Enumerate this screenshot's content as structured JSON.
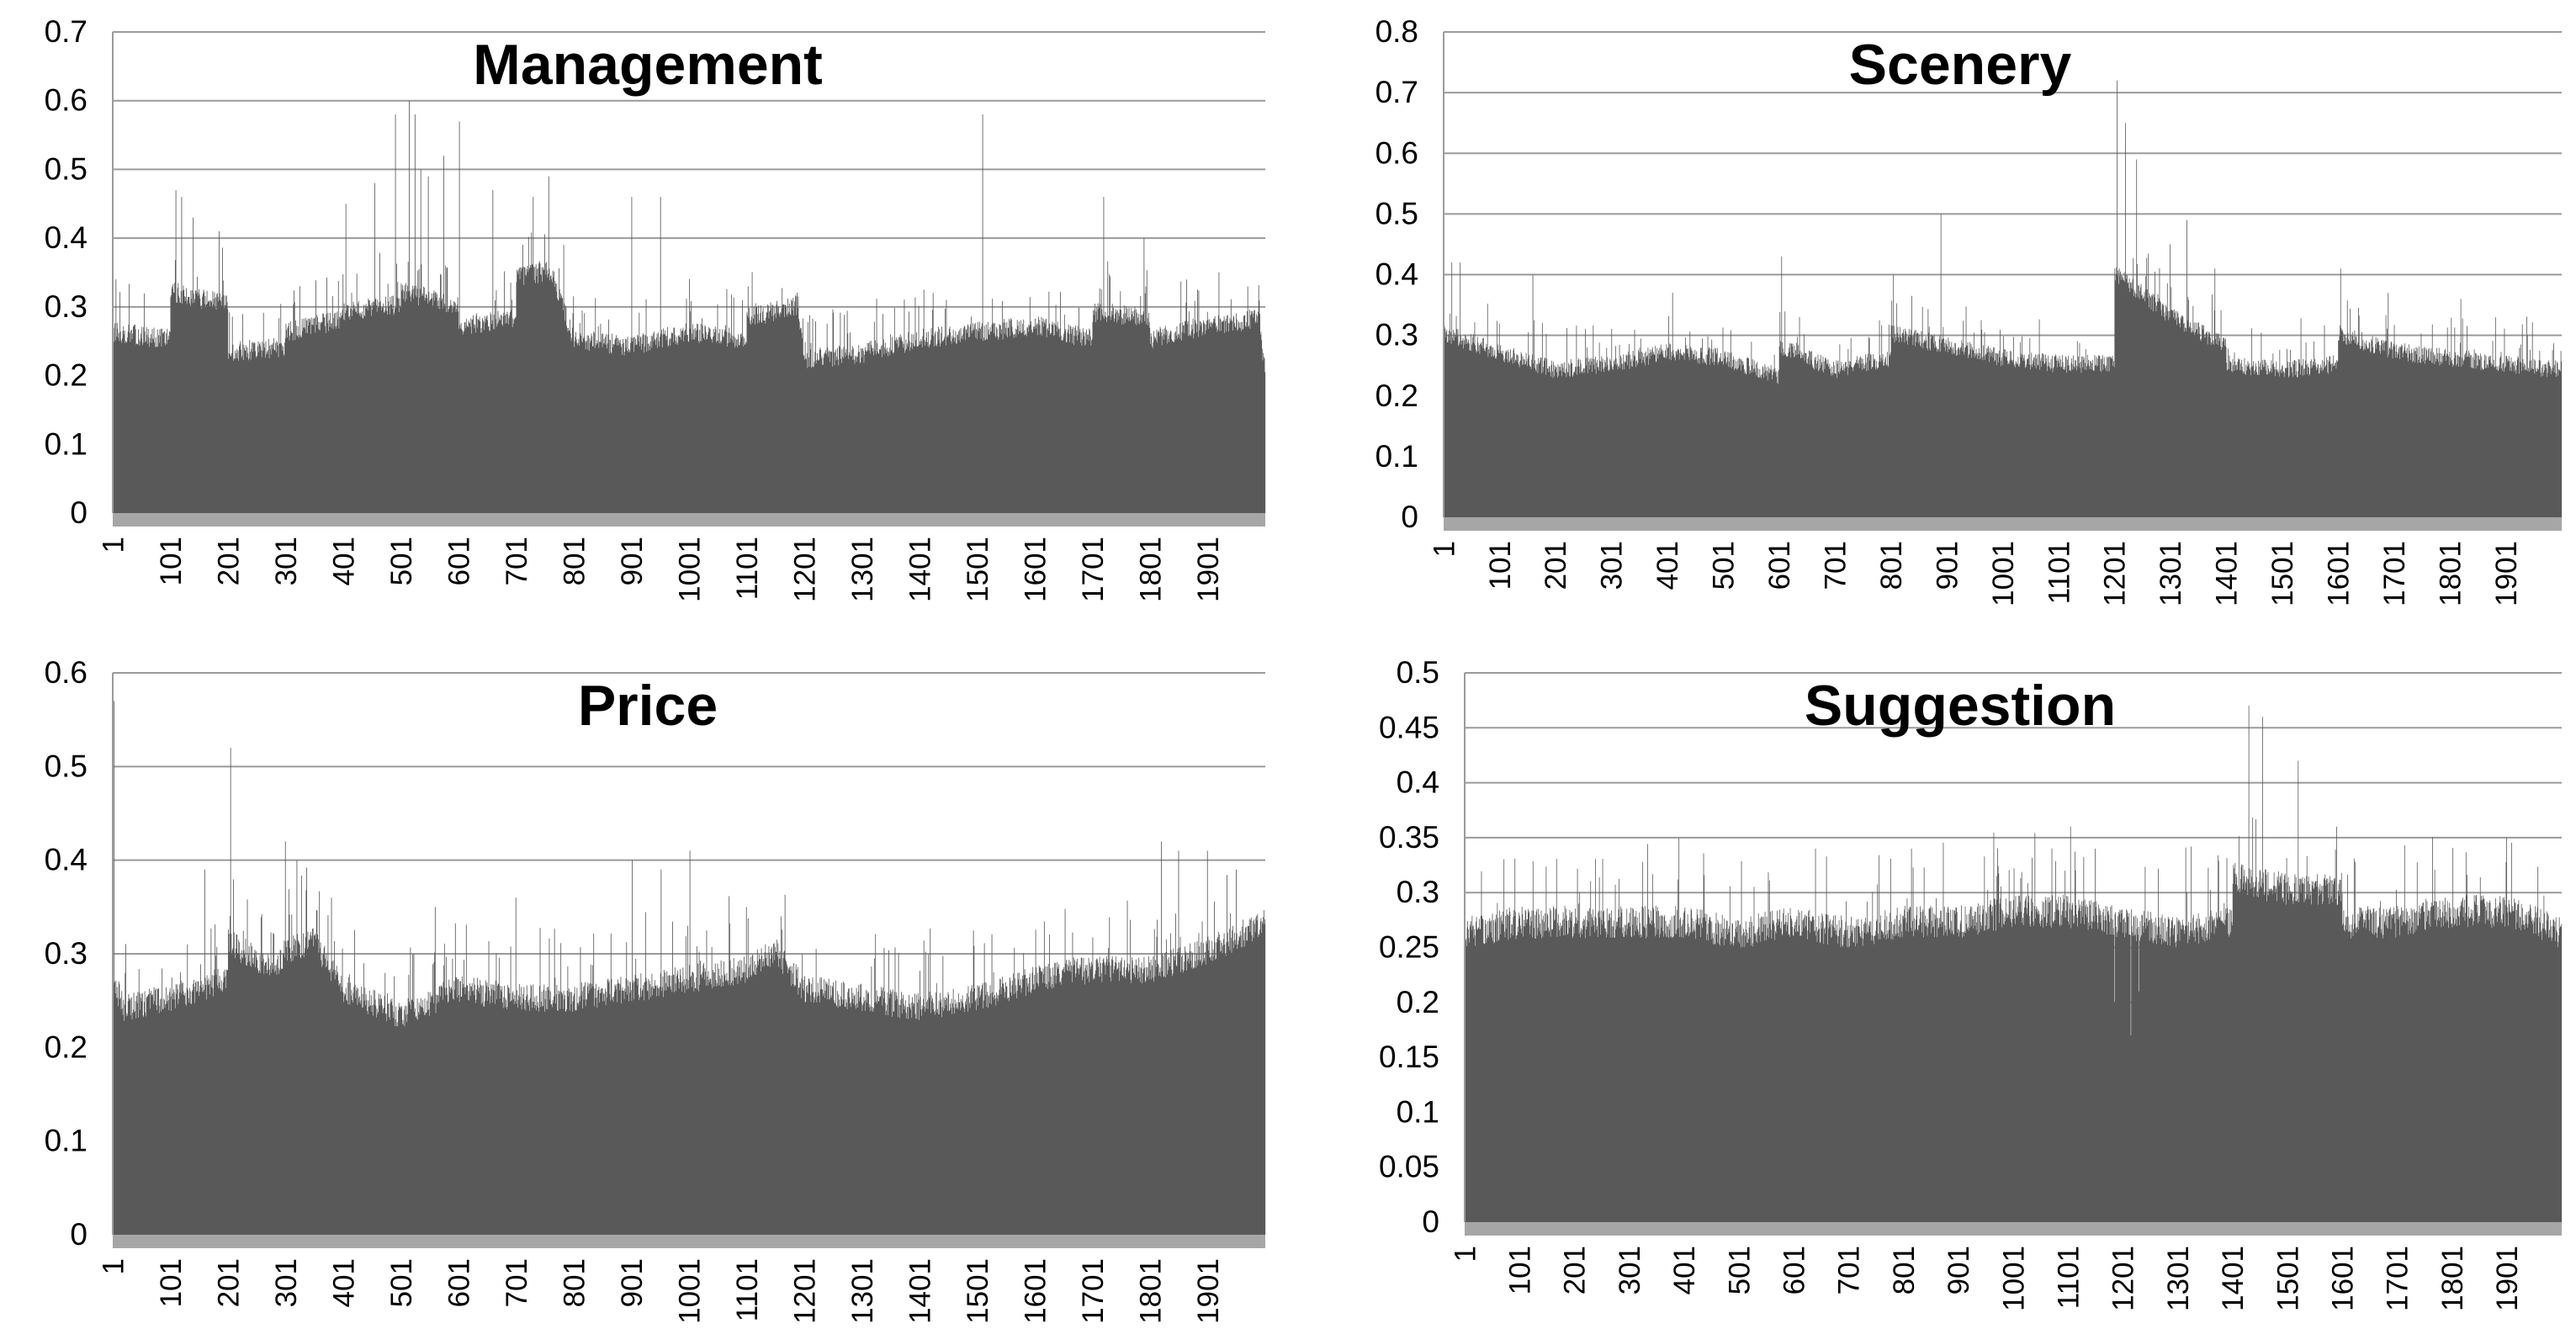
{
  "chart_data": [
    {
      "type": "bar",
      "title": "Management",
      "xlabel": "",
      "ylabel": "",
      "ylim": [
        0,
        0.7
      ],
      "yticks": [
        "0",
        "0.1",
        "0.2",
        "0.3",
        "0.4",
        "0.5",
        "0.6",
        "0.7"
      ],
      "xtick_labels": [
        "1",
        "101",
        "201",
        "301",
        "401",
        "501",
        "601",
        "701",
        "801",
        "901",
        "1001",
        "1101",
        "1201",
        "1301",
        "1401",
        "1501",
        "1601",
        "1701",
        "1801",
        "1901"
      ],
      "x_range": [
        1,
        2000
      ],
      "grid": true,
      "bar_color": "#595959",
      "baseline": [
        [
          1,
          0.26
        ],
        [
          100,
          0.25
        ],
        [
          101,
          0.32
        ],
        [
          200,
          0.3
        ],
        [
          201,
          0.23
        ],
        [
          300,
          0.24
        ],
        [
          301,
          0.26
        ],
        [
          400,
          0.28
        ],
        [
          401,
          0.29
        ],
        [
          500,
          0.3
        ],
        [
          501,
          0.32
        ],
        [
          600,
          0.3
        ],
        [
          601,
          0.27
        ],
        [
          700,
          0.28
        ],
        [
          701,
          0.34
        ],
        [
          760,
          0.35
        ],
        [
          800,
          0.25
        ],
        [
          901,
          0.24
        ],
        [
          1000,
          0.26
        ],
        [
          1100,
          0.25
        ],
        [
          1101,
          0.28
        ],
        [
          1190,
          0.3
        ],
        [
          1200,
          0.22
        ],
        [
          1300,
          0.23
        ],
        [
          1400,
          0.25
        ],
        [
          1500,
          0.26
        ],
        [
          1600,
          0.27
        ],
        [
          1700,
          0.25
        ],
        [
          1701,
          0.29
        ],
        [
          1800,
          0.28
        ],
        [
          1801,
          0.25
        ],
        [
          1900,
          0.27
        ],
        [
          1990,
          0.28
        ],
        [
          2000,
          0.2
        ]
      ],
      "peaks": [
        [
          6,
          0.34
        ],
        [
          110,
          0.47
        ],
        [
          120,
          0.46
        ],
        [
          140,
          0.43
        ],
        [
          185,
          0.41
        ],
        [
          405,
          0.45
        ],
        [
          455,
          0.48
        ],
        [
          491,
          0.58
        ],
        [
          515,
          0.6
        ],
        [
          525,
          0.58
        ],
        [
          535,
          0.5
        ],
        [
          548,
          0.49
        ],
        [
          575,
          0.52
        ],
        [
          602,
          0.57
        ],
        [
          660,
          0.47
        ],
        [
          730,
          0.46
        ],
        [
          757,
          0.49
        ],
        [
          783,
          0.39
        ],
        [
          901,
          0.46
        ],
        [
          951,
          0.46
        ],
        [
          1510,
          0.58
        ],
        [
          1720,
          0.46
        ],
        [
          1790,
          0.4
        ],
        [
          1920,
          0.35
        ]
      ]
    },
    {
      "type": "bar",
      "title": "Scenery",
      "xlabel": "",
      "ylabel": "",
      "ylim": [
        0,
        0.8
      ],
      "yticks": [
        "0",
        "0.1",
        "0.2",
        "0.3",
        "0.4",
        "0.5",
        "0.6",
        "0.7",
        "0.8"
      ],
      "xtick_labels": [
        "1",
        "101",
        "201",
        "301",
        "401",
        "501",
        "601",
        "701",
        "801",
        "901",
        "1001",
        "1101",
        "1201",
        "1301",
        "1401",
        "1501",
        "1601",
        "1701",
        "1801",
        "1901"
      ],
      "x_range": [
        1,
        2000
      ],
      "grid": true,
      "bar_color": "#595959",
      "baseline": [
        [
          1,
          0.3
        ],
        [
          100,
          0.27
        ],
        [
          200,
          0.24
        ],
        [
          300,
          0.25
        ],
        [
          400,
          0.27
        ],
        [
          500,
          0.26
        ],
        [
          600,
          0.23
        ],
        [
          601,
          0.28
        ],
        [
          700,
          0.24
        ],
        [
          800,
          0.26
        ],
        [
          801,
          0.3
        ],
        [
          900,
          0.28
        ],
        [
          1000,
          0.26
        ],
        [
          1100,
          0.25
        ],
        [
          1200,
          0.25
        ],
        [
          1201,
          0.4
        ],
        [
          1300,
          0.33
        ],
        [
          1400,
          0.28
        ],
        [
          1401,
          0.25
        ],
        [
          1500,
          0.24
        ],
        [
          1600,
          0.25
        ],
        [
          1601,
          0.3
        ],
        [
          1700,
          0.27
        ],
        [
          1800,
          0.26
        ],
        [
          1900,
          0.25
        ],
        [
          2000,
          0.24
        ]
      ],
      "peaks": [
        [
          15,
          0.42
        ],
        [
          30,
          0.42
        ],
        [
          160,
          0.4
        ],
        [
          410,
          0.37
        ],
        [
          605,
          0.43
        ],
        [
          805,
          0.4
        ],
        [
          890,
          0.5
        ],
        [
          1205,
          0.72
        ],
        [
          1220,
          0.65
        ],
        [
          1240,
          0.59
        ],
        [
          1300,
          0.45
        ],
        [
          1330,
          0.49
        ],
        [
          1380,
          0.41
        ],
        [
          1605,
          0.41
        ],
        [
          1690,
          0.37
        ],
        [
          1820,
          0.36
        ]
      ]
    },
    {
      "type": "bar",
      "title": "Price",
      "xlabel": "",
      "ylabel": "",
      "ylim": [
        0,
        0.6
      ],
      "yticks": [
        "0",
        "0.1",
        "0.2",
        "0.3",
        "0.4",
        "0.5",
        "0.6"
      ],
      "xtick_labels": [
        "1",
        "101",
        "201",
        "301",
        "401",
        "501",
        "601",
        "701",
        "801",
        "901",
        "1001",
        "1101",
        "1201",
        "1301",
        "1401",
        "1501",
        "1601",
        "1701",
        "1801",
        "1901"
      ],
      "x_range": [
        1,
        2000
      ],
      "grid": true,
      "bar_color": "#595959",
      "baseline": [
        [
          1,
          0.27
        ],
        [
          20,
          0.24
        ],
        [
          100,
          0.25
        ],
        [
          200,
          0.27
        ],
        [
          201,
          0.31
        ],
        [
          280,
          0.28
        ],
        [
          300,
          0.3
        ],
        [
          350,
          0.31
        ],
        [
          400,
          0.26
        ],
        [
          500,
          0.23
        ],
        [
          600,
          0.26
        ],
        [
          700,
          0.25
        ],
        [
          800,
          0.25
        ],
        [
          900,
          0.26
        ],
        [
          1000,
          0.27
        ],
        [
          1100,
          0.28
        ],
        [
          1150,
          0.3
        ],
        [
          1200,
          0.26
        ],
        [
          1300,
          0.25
        ],
        [
          1400,
          0.24
        ],
        [
          1500,
          0.25
        ],
        [
          1600,
          0.27
        ],
        [
          1700,
          0.28
        ],
        [
          1800,
          0.28
        ],
        [
          1900,
          0.3
        ],
        [
          2000,
          0.33
        ]
      ],
      "peaks": [
        [
          3,
          0.57
        ],
        [
          205,
          0.52
        ],
        [
          160,
          0.39
        ],
        [
          300,
          0.42
        ],
        [
          320,
          0.4
        ],
        [
          380,
          0.36
        ],
        [
          560,
          0.35
        ],
        [
          700,
          0.36
        ],
        [
          902,
          0.4
        ],
        [
          952,
          0.39
        ],
        [
          1002,
          0.41
        ],
        [
          1100,
          0.35
        ],
        [
          1160,
          0.34
        ],
        [
          1820,
          0.42
        ],
        [
          1850,
          0.41
        ],
        [
          1900,
          0.41
        ],
        [
          1950,
          0.39
        ]
      ]
    },
    {
      "type": "bar",
      "title": "Suggestion",
      "xlabel": "",
      "ylabel": "",
      "ylim": [
        0,
        0.5
      ],
      "yticks": [
        "0",
        "0.05",
        "0.1",
        "0.15",
        "0.2",
        "0.25",
        "0.3",
        "0.35",
        "0.4",
        "0.45",
        "0.5"
      ],
      "xtick_labels": [
        "1",
        "101",
        "201",
        "301",
        "401",
        "501",
        "601",
        "701",
        "801",
        "901",
        "1001",
        "1101",
        "1201",
        "1301",
        "1401",
        "1501",
        "1601",
        "1701",
        "1801",
        "1901"
      ],
      "x_range": [
        1,
        2000
      ],
      "grid": true,
      "bar_color": "#595959",
      "baseline": [
        [
          1,
          0.26
        ],
        [
          100,
          0.27
        ],
        [
          200,
          0.27
        ],
        [
          300,
          0.27
        ],
        [
          400,
          0.27
        ],
        [
          500,
          0.26
        ],
        [
          600,
          0.27
        ],
        [
          700,
          0.26
        ],
        [
          800,
          0.27
        ],
        [
          900,
          0.27
        ],
        [
          1000,
          0.28
        ],
        [
          1100,
          0.28
        ],
        [
          1200,
          0.27
        ],
        [
          1300,
          0.26
        ],
        [
          1400,
          0.27
        ],
        [
          1401,
          0.31
        ],
        [
          1500,
          0.3
        ],
        [
          1600,
          0.3
        ],
        [
          1601,
          0.27
        ],
        [
          1700,
          0.27
        ],
        [
          1800,
          0.28
        ],
        [
          1900,
          0.28
        ],
        [
          2000,
          0.26
        ]
      ],
      "troughs": [
        [
          1215,
          0.17
        ],
        [
          1185,
          0.2
        ],
        [
          1230,
          0.21
        ]
      ],
      "peaks": [
        [
          640,
          0.34
        ],
        [
          815,
          0.34
        ],
        [
          1105,
          0.36
        ],
        [
          1150,
          0.34
        ],
        [
          1230,
          0.39
        ],
        [
          1430,
          0.47
        ],
        [
          1455,
          0.46
        ],
        [
          1520,
          0.42
        ],
        [
          1590,
          0.36
        ],
        [
          1900,
          0.35
        ]
      ]
    }
  ]
}
